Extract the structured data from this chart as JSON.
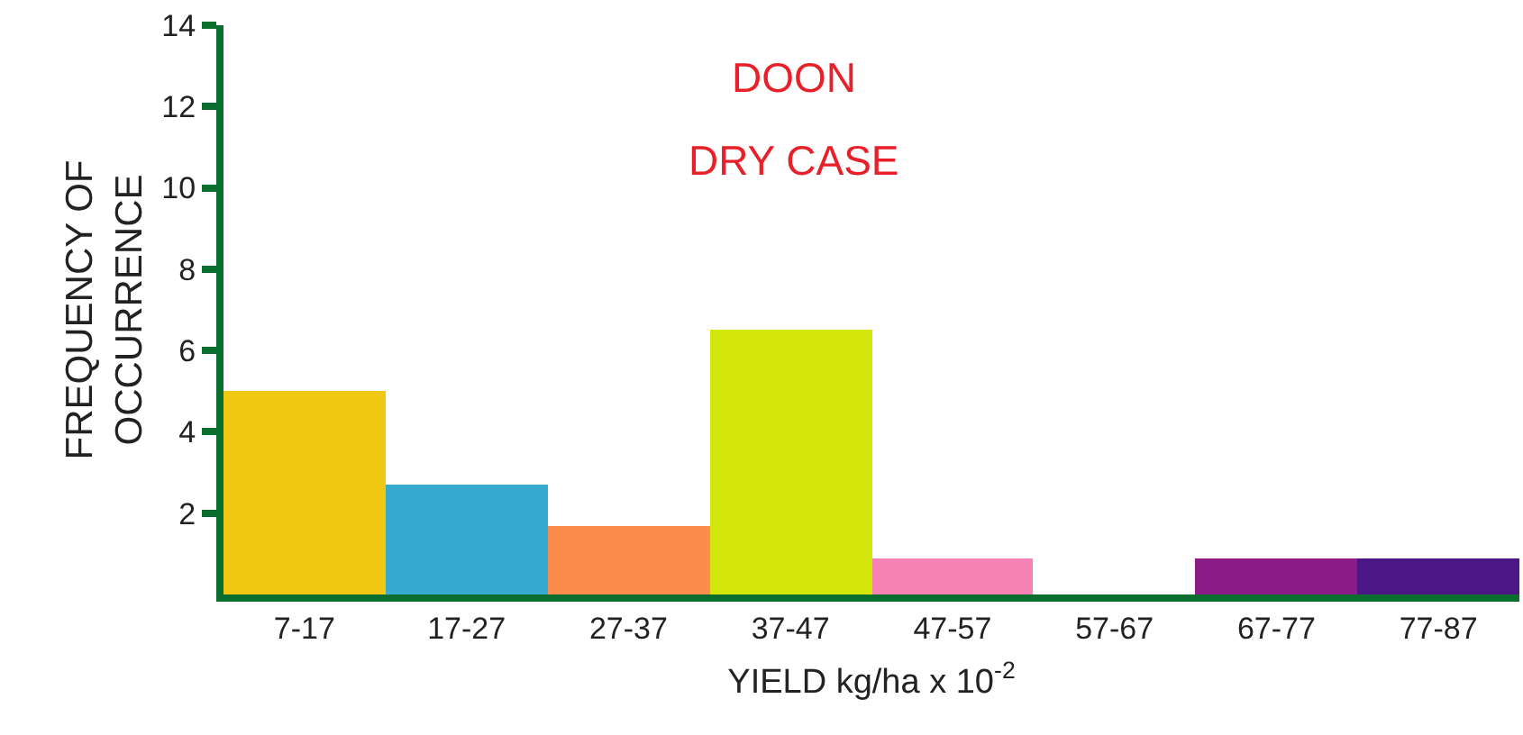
{
  "chart_data": {
    "type": "bar",
    "title": "DOON",
    "subtitle": "DRY CASE",
    "xlabel": "YIELD kg/ha x 10$^{-2}$",
    "ylabel": "FREQUENCY OF\nOCCURRENCE",
    "categories": [
      "7-17",
      "17-27",
      "27-37",
      "37-47",
      "47-57",
      "57-67",
      "67-77",
      "77-87"
    ],
    "values": [
      5,
      2.7,
      1.7,
      6.5,
      0.9,
      0,
      0.9,
      0.9
    ],
    "colors": [
      "#f0c814",
      "#36aacf",
      "#fc8b4e",
      "#d2e60c",
      "#f783b6",
      "#ffffff",
      "#8c1a87",
      "#4b1787"
    ],
    "ylim": [
      0,
      14
    ],
    "yticks": [
      2,
      4,
      6,
      8,
      10,
      12,
      14
    ]
  }
}
